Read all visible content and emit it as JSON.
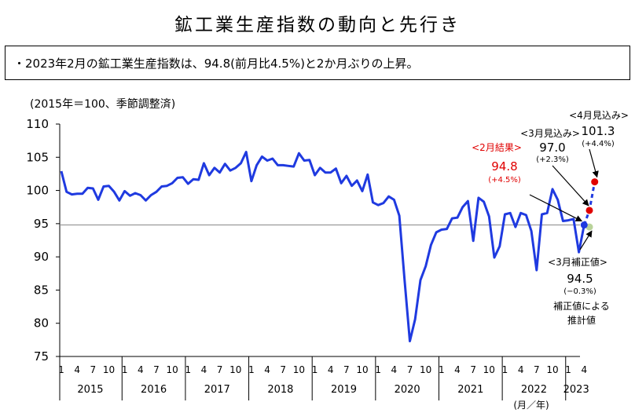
{
  "header": {
    "title": "鉱工業生産指数の動向と先行き",
    "summary": "・2023年2月の鉱工業生産指数は、94.8(前月比4.5%)と2か月ぶりの上昇。",
    "unit_label": "(2015年＝100、季節調整済)"
  },
  "colors": {
    "line": "#1f3ae0",
    "reference_line": "#888888",
    "result": "#e00000",
    "forecast": "#e00000",
    "corrected": "#b9d39a"
  },
  "chart_data": {
    "type": "line",
    "title": "鉱工業生産指数の動向と先行き",
    "ylabel": "(2015年＝100、季節調整済)",
    "xlabel": "(月／年)",
    "ylim": [
      75,
      110
    ],
    "yticks": [
      "75",
      "80",
      "85",
      "90",
      "95",
      "100",
      "105",
      "110"
    ],
    "month_tick_labels": [
      "1",
      "4",
      "7",
      "10"
    ],
    "year_labels": [
      "2015",
      "2016",
      "2017",
      "2018",
      "2019",
      "2020",
      "2021",
      "2022",
      "2023"
    ],
    "last_month_label": "4",
    "reference_line_value": 94.8,
    "series": [
      {
        "values": [
          102.9,
          99.8,
          99.4,
          99.5,
          99.5,
          100.4,
          100.3,
          98.6,
          100.6,
          100.7,
          99.8,
          98.5,
          99.9,
          99.2,
          99.6,
          99.3,
          98.5,
          99.3,
          99.8,
          100.6,
          100.7,
          101.1,
          101.9,
          102.0,
          101.0,
          101.7,
          101.6,
          104.1,
          102.3,
          103.4,
          102.7,
          104.0,
          103.0,
          103.4,
          104.1,
          105.8,
          101.4,
          103.8,
          105.1,
          104.5,
          104.8,
          103.8,
          103.8,
          103.7,
          103.6,
          105.6,
          104.5,
          104.6,
          102.3,
          103.4,
          102.7,
          102.7,
          103.3,
          101.1,
          102.2,
          100.7,
          101.5,
          99.9,
          102.4,
          98.2,
          97.8,
          98.1,
          99.1,
          98.6,
          96.2,
          86.5,
          77.3,
          80.6,
          86.5,
          88.6,
          91.8,
          93.7,
          94.1,
          94.2,
          95.8,
          95.9,
          97.5,
          98.4,
          92.4,
          98.9,
          98.3,
          96.1,
          89.9,
          91.6,
          96.4,
          96.6,
          94.5,
          96.6,
          96.3,
          93.9,
          88.0,
          96.4,
          96.6,
          100.2,
          98.6,
          95.4,
          95.5,
          95.7,
          90.7,
          94.8
        ]
      }
    ],
    "annotations": {
      "result_label": "<2月結果>",
      "result_value": "94.8",
      "result_change": "(+4.5%)",
      "march_label": "<3月見込み>",
      "march_value": "97.0",
      "march_change": "(+2.3%)",
      "april_label": "<4月見込み>",
      "april_value": "101.3",
      "april_change": "(+4.4%)",
      "corrected_label": "<3月補正値>",
      "corrected_value": "94.5",
      "corrected_change": "(−0.3%)",
      "corrected_note_1": "補正値による",
      "corrected_note_2": "推計値"
    },
    "points": {
      "result": 94.8,
      "march_forecast": 97.0,
      "april_forecast": 101.3,
      "march_corrected": 94.5
    }
  }
}
